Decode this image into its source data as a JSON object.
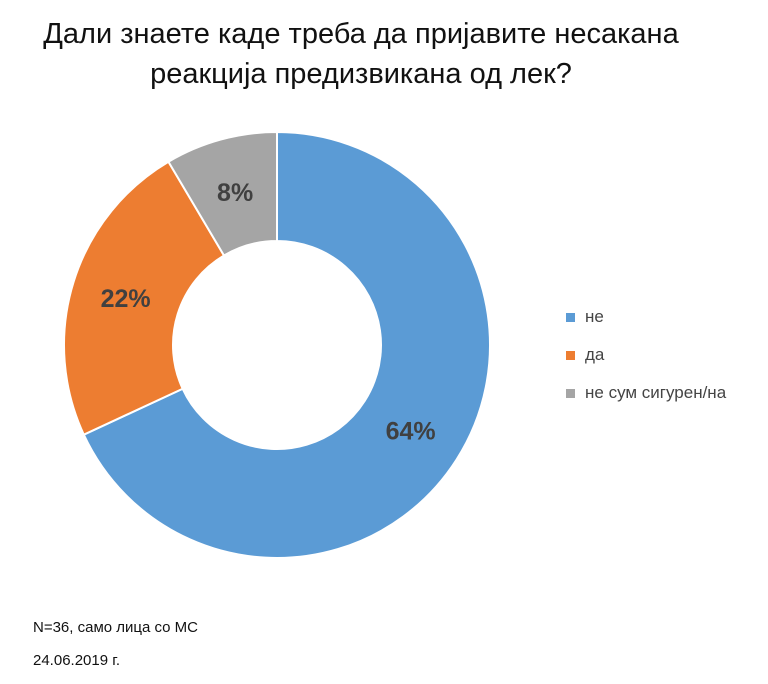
{
  "chart_data": {
    "type": "pie",
    "subtype": "donut",
    "title_lines": [
      "Дали знаете каде треба да пријавите несакана",
      "реакција предизвикана од лек?"
    ],
    "categories": [
      "не",
      "да",
      "не сум сигурен/на"
    ],
    "values": [
      64,
      22,
      8
    ],
    "labels": [
      "64%",
      "22%",
      "8%"
    ],
    "colors": [
      "#5b9bd5",
      "#ed7d31",
      "#a5a5a5"
    ],
    "legend_position": "right"
  },
  "footer": {
    "note": "N=36, само лица со МС",
    "date": "24.06.2019 г."
  }
}
